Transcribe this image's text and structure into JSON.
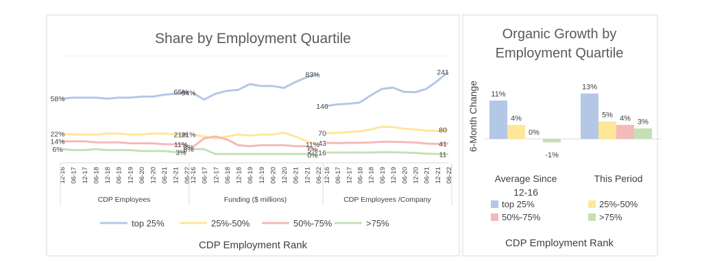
{
  "left_chart": {
    "title": "Share by Employment Quartile",
    "x_axis_title": "CDP Employment Rank",
    "legend": [
      "top 25%",
      "25%-50%",
      "50%-75%",
      ">75%"
    ],
    "colors": [
      "#b4c7e7",
      "#ffe699",
      "#f4b9b9",
      "#c5e0b4"
    ],
    "chart_data": {
      "type": "line",
      "categories": [
        "12-16",
        "06-17",
        "12-17",
        "06-18",
        "12-18",
        "06-19",
        "12-19",
        "06-20",
        "12-20",
        "06-21",
        "12-21",
        "06-22"
      ],
      "panels": [
        {
          "label": "CDP Employees",
          "series": [
            {
              "name": "top 25%",
              "values": [
                58,
                59,
                59,
                59,
                58,
                59,
                59,
                60,
                60,
                62,
                63,
                65
              ],
              "labels": [
                "58%",
                "65%"
              ]
            },
            {
              "name": "25%-50%",
              "values": [
                22,
                21,
                21,
                21,
                22,
                22,
                21,
                21,
                22,
                22,
                21,
                21
              ],
              "labels": [
                "22%",
                "21%"
              ]
            },
            {
              "name": "50%-75%",
              "values": [
                14,
                14,
                14,
                13,
                13,
                13,
                12,
                12,
                12,
                11,
                11,
                11
              ],
              "labels": [
                "14%",
                "11%"
              ]
            },
            {
              "name": ">75%",
              "values": [
                6,
                5,
                5,
                6,
                5,
                5,
                5,
                4,
                4,
                4,
                3,
                3
              ],
              "labels": [
                "6%",
                "3%"
              ]
            }
          ]
        },
        {
          "label": "Funding ($ millions)",
          "series": [
            {
              "name": "top 25%",
              "values": [
                64,
                57,
                63,
                66,
                67,
                73,
                71,
                71,
                69,
                75,
                80,
                83
              ],
              "labels": [
                "64%",
                "83%"
              ]
            },
            {
              "name": "25%-50%",
              "values": [
                21,
                19,
                17,
                19,
                21,
                20,
                21,
                21,
                23,
                19,
                14,
                11
              ],
              "labels": [
                "21%",
                "11%"
              ]
            },
            {
              "name": "50%-75%",
              "values": [
                8,
                17,
                19,
                16,
                10,
                9,
                10,
                10,
                10,
                9,
                9,
                5
              ],
              "labels": [
                "8%",
                "5%"
              ]
            },
            {
              "name": ">75%",
              "values": [
                6,
                6,
                1,
                1,
                1,
                1,
                1,
                1,
                1,
                1,
                1,
                0
              ],
              "labels": [
                "6%",
                "0%"
              ]
            }
          ]
        },
        {
          "label": "CDP Employees /Company",
          "series": [
            {
              "name": "top 25%",
              "values": [
                146,
                150,
                152,
                155,
                175,
                193,
                197,
                185,
                184,
                193,
                215,
                241
              ],
              "labels": [
                "146",
                "241"
              ]
            },
            {
              "name": "25%-50%",
              "values": [
                70,
                71,
                73,
                75,
                80,
                88,
                87,
                82,
                80,
                77,
                76,
                80
              ],
              "labels": [
                "70",
                "80"
              ]
            },
            {
              "name": "50%-75%",
              "values": [
                43,
                42,
                43,
                43,
                44,
                46,
                46,
                45,
                44,
                41,
                40,
                41
              ],
              "labels": [
                "43",
                "41"
              ]
            },
            {
              "name": ">75%",
              "values": [
                16,
                16,
                16,
                16,
                16,
                17,
                17,
                16,
                15,
                13,
                12,
                11
              ],
              "labels": [
                "16",
                "11"
              ]
            }
          ]
        }
      ]
    }
  },
  "right_chart": {
    "title_line1": "Organic Growth by",
    "title_line2": "Employment Quartile",
    "y_axis_title": "6-Month Change",
    "x_axis_title": "CDP Employment Rank",
    "legend": [
      "top 25%",
      "25%-50%",
      "50%-75%",
      ">75%"
    ],
    "colors": [
      "#b4c7e7",
      "#ffe699",
      "#f4b9b9",
      "#c5e0b4"
    ],
    "chart_data": {
      "type": "bar",
      "categories": [
        [
          "Average Since",
          "12-16"
        ],
        [
          "This Period"
        ]
      ],
      "series": [
        {
          "name": "top 25%",
          "values": [
            11,
            13
          ],
          "labels": [
            "11%",
            "13%"
          ]
        },
        {
          "name": "25%-50%",
          "values": [
            4,
            5
          ],
          "labels": [
            "4%",
            "5%"
          ]
        },
        {
          "name": "50%-75%",
          "values": [
            0,
            4
          ],
          "labels": [
            "0%",
            "4%"
          ]
        },
        {
          "name": ">75%",
          "values": [
            -1,
            3
          ],
          "labels": [
            "-1%",
            "3%"
          ]
        }
      ]
    }
  }
}
